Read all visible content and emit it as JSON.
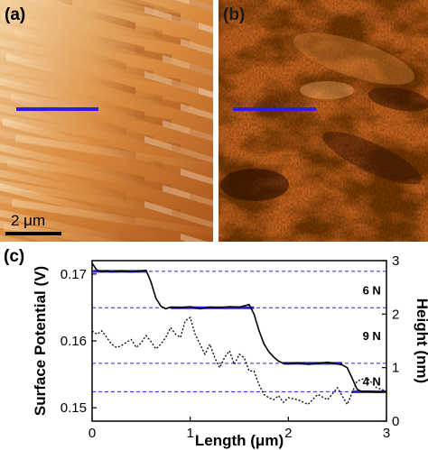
{
  "panels": {
    "a": {
      "label": "(a)",
      "scalebar_label": "2 μm"
    },
    "b": {
      "label": "(b)"
    },
    "c": {
      "label": "(c)"
    }
  },
  "colors": {
    "line_marker": "#2f1fd6",
    "fit_line": "#2f1fd6"
  },
  "chart_data": {
    "type": "line",
    "xlabel": "Length (μm)",
    "ylabel_left": "Surface Potential (V)",
    "ylabel_right": "Height (nm)",
    "xlim": [
      0,
      3
    ],
    "ylim_left": [
      0.148,
      0.172
    ],
    "ylim_right": [
      0,
      3
    ],
    "x_ticks": [
      0,
      1,
      2,
      3
    ],
    "y_ticks_left": [
      0.15,
      0.16,
      0.17
    ],
    "y_ticks_right": [
      0,
      1,
      2,
      3
    ],
    "grid": false,
    "reference_levels_right": [
      2.8,
      2.12,
      1.08,
      0.55
    ],
    "annotations": [
      {
        "text": "6 N",
        "x": 2.85,
        "y_right": 2.45
      },
      {
        "text": "9 N",
        "x": 2.85,
        "y_right": 1.6
      },
      {
        "text": "4 N",
        "x": 2.85,
        "y_right": 0.75
      }
    ],
    "series": [
      {
        "style": "solid",
        "axis": "right",
        "x": [
          0,
          0.05,
          0.1,
          0.15,
          0.2,
          0.25,
          0.3,
          0.35,
          0.4,
          0.45,
          0.5,
          0.55,
          0.6,
          0.65,
          0.7,
          0.75,
          0.8,
          0.9,
          1.0,
          1.1,
          1.2,
          1.3,
          1.4,
          1.5,
          1.6,
          1.65,
          1.7,
          1.75,
          1.8,
          1.85,
          1.9,
          1.95,
          2.0,
          2.1,
          2.2,
          2.3,
          2.4,
          2.5,
          2.55,
          2.6,
          2.65,
          2.7,
          2.75,
          2.8,
          2.9,
          3.0
        ],
        "y": [
          2.95,
          2.82,
          2.8,
          2.81,
          2.79,
          2.8,
          2.81,
          2.8,
          2.79,
          2.8,
          2.81,
          2.82,
          2.6,
          2.3,
          2.15,
          2.1,
          2.13,
          2.12,
          2.14,
          2.1,
          2.13,
          2.12,
          2.14,
          2.13,
          2.18,
          2.0,
          1.7,
          1.45,
          1.3,
          1.2,
          1.12,
          1.08,
          1.07,
          1.09,
          1.06,
          1.08,
          1.1,
          1.07,
          1.05,
          1.0,
          0.8,
          0.6,
          0.55,
          0.56,
          0.54,
          0.55
        ]
      },
      {
        "style": "dotted",
        "axis": "left",
        "x": [
          0,
          0.05,
          0.1,
          0.15,
          0.2,
          0.25,
          0.3,
          0.35,
          0.4,
          0.45,
          0.5,
          0.55,
          0.6,
          0.65,
          0.7,
          0.75,
          0.8,
          0.85,
          0.9,
          0.95,
          1.0,
          1.05,
          1.1,
          1.15,
          1.2,
          1.25,
          1.3,
          1.35,
          1.4,
          1.45,
          1.5,
          1.55,
          1.6,
          1.65,
          1.7,
          1.75,
          1.8,
          1.85,
          1.9,
          1.95,
          2.0,
          2.1,
          2.2,
          2.3,
          2.4,
          2.5,
          2.6,
          2.7,
          2.8,
          2.9,
          3.0
        ],
        "y": [
          0.1615,
          0.161,
          0.1615,
          0.1605,
          0.1595,
          0.159,
          0.1593,
          0.1598,
          0.1602,
          0.159,
          0.1597,
          0.1608,
          0.1599,
          0.1588,
          0.1595,
          0.1605,
          0.162,
          0.161,
          0.1605,
          0.163,
          0.1635,
          0.161,
          0.1595,
          0.158,
          0.1595,
          0.1575,
          0.156,
          0.1575,
          0.1585,
          0.1565,
          0.158,
          0.1575,
          0.1555,
          0.1555,
          0.1535,
          0.152,
          0.1515,
          0.1512,
          0.1518,
          0.1508,
          0.1515,
          0.1512,
          0.1505,
          0.152,
          0.1512,
          0.153,
          0.1505,
          0.154,
          0.1545,
          0.153,
          0.1525
        ]
      }
    ]
  }
}
